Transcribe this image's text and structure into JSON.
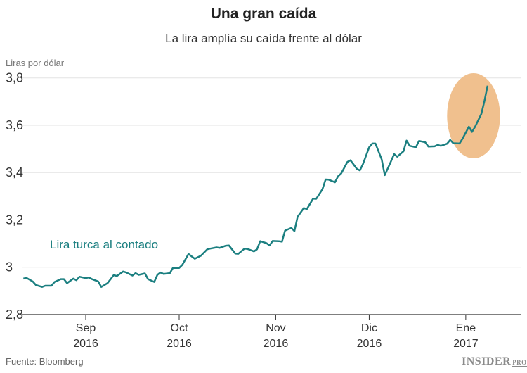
{
  "header": {
    "title": "Una gran caída",
    "subtitle": "La lira amplía su caída frente al dólar"
  },
  "footer": {
    "source": "Fuente: Bloomberg",
    "logo_main": "INSIDER",
    "logo_suffix": "PRO"
  },
  "colors": {
    "line": "#1b7f80",
    "highlight": "#f0c08e",
    "grid": "#e3e3e3",
    "axis": "#333333"
  },
  "chart_data": {
    "type": "line",
    "title": "Una gran caída",
    "subtitle": "La lira amplía su caída frente al dólar",
    "ylabel": "Liras por dólar",
    "ylim": [
      2.8,
      3.8
    ],
    "yticks": [
      {
        "value": 2.8,
        "label": "2,8"
      },
      {
        "value": 3.0,
        "label": "3"
      },
      {
        "value": 3.2,
        "label": "3,2"
      },
      {
        "value": 3.4,
        "label": "3,4"
      },
      {
        "value": 3.6,
        "label": "3,6"
      },
      {
        "value": 3.8,
        "label": "3,8"
      }
    ],
    "xticks": [
      {
        "date": "2016-09-01",
        "month": "Sep",
        "year": "2016"
      },
      {
        "date": "2016-10-01",
        "month": "Oct",
        "year": "2016"
      },
      {
        "date": "2016-11-01",
        "month": "Nov",
        "year": "2016"
      },
      {
        "date": "2016-12-01",
        "month": "Dic",
        "year": "2016"
      },
      {
        "date": "2017-01-01",
        "month": "Ene",
        "year": "2017"
      }
    ],
    "grid": true,
    "highlight": {
      "shape": "ellipse",
      "from": "2016-12-26",
      "to": "2017-01-12",
      "ymin": 3.46,
      "ymax": 3.82
    },
    "series": [
      {
        "name": "Lira turca al contado",
        "points": [
          [
            "2016-08-12",
            2.952
          ],
          [
            "2016-08-13",
            2.955
          ],
          [
            "2016-08-15",
            2.94
          ],
          [
            "2016-08-16",
            2.925
          ],
          [
            "2016-08-18",
            2.917
          ],
          [
            "2016-08-19",
            2.922
          ],
          [
            "2016-08-21",
            2.922
          ],
          [
            "2016-08-22",
            2.938
          ],
          [
            "2016-08-24",
            2.95
          ],
          [
            "2016-08-25",
            2.95
          ],
          [
            "2016-08-26",
            2.933
          ],
          [
            "2016-08-28",
            2.952
          ],
          [
            "2016-08-29",
            2.945
          ],
          [
            "2016-08-30",
            2.96
          ],
          [
            "2016-09-01",
            2.954
          ],
          [
            "2016-09-02",
            2.957
          ],
          [
            "2016-09-03",
            2.95
          ],
          [
            "2016-09-05",
            2.94
          ],
          [
            "2016-09-06",
            2.917
          ],
          [
            "2016-09-08",
            2.933
          ],
          [
            "2016-09-09",
            2.95
          ],
          [
            "2016-09-10",
            2.967
          ],
          [
            "2016-09-11",
            2.963
          ],
          [
            "2016-09-13",
            2.982
          ],
          [
            "2016-09-14",
            2.978
          ],
          [
            "2016-09-16",
            2.965
          ],
          [
            "2016-09-17",
            2.975
          ],
          [
            "2016-09-18",
            2.968
          ],
          [
            "2016-09-20",
            2.974
          ],
          [
            "2016-09-21",
            2.95
          ],
          [
            "2016-09-23",
            2.938
          ],
          [
            "2016-09-24",
            2.968
          ],
          [
            "2016-09-25",
            2.978
          ],
          [
            "2016-09-26",
            2.972
          ],
          [
            "2016-09-28",
            2.975
          ],
          [
            "2016-09-29",
            2.997
          ],
          [
            "2016-10-01",
            2.997
          ],
          [
            "2016-10-02",
            3.01
          ],
          [
            "2016-10-04",
            3.056
          ],
          [
            "2016-10-05",
            3.046
          ],
          [
            "2016-10-06",
            3.036
          ],
          [
            "2016-10-08",
            3.049
          ],
          [
            "2016-10-10",
            3.076
          ],
          [
            "2016-10-11",
            3.079
          ],
          [
            "2016-10-13",
            3.084
          ],
          [
            "2016-10-14",
            3.082
          ],
          [
            "2016-10-16",
            3.091
          ],
          [
            "2016-10-17",
            3.092
          ],
          [
            "2016-10-19",
            3.058
          ],
          [
            "2016-10-20",
            3.057
          ],
          [
            "2016-10-22",
            3.079
          ],
          [
            "2016-10-23",
            3.077
          ],
          [
            "2016-10-25",
            3.067
          ],
          [
            "2016-10-26",
            3.076
          ],
          [
            "2016-10-27",
            3.11
          ],
          [
            "2016-10-29",
            3.102
          ],
          [
            "2016-10-30",
            3.092
          ],
          [
            "2016-10-31",
            3.111
          ],
          [
            "2016-11-02",
            3.11
          ],
          [
            "2016-11-03",
            3.108
          ],
          [
            "2016-11-04",
            3.155
          ],
          [
            "2016-11-06",
            3.166
          ],
          [
            "2016-11-07",
            3.153
          ],
          [
            "2016-11-08",
            3.213
          ],
          [
            "2016-11-10",
            3.25
          ],
          [
            "2016-11-11",
            3.246
          ],
          [
            "2016-11-13",
            3.29
          ],
          [
            "2016-11-14",
            3.289
          ],
          [
            "2016-11-16",
            3.33
          ],
          [
            "2016-11-17",
            3.371
          ],
          [
            "2016-11-18",
            3.37
          ],
          [
            "2016-11-20",
            3.359
          ],
          [
            "2016-11-21",
            3.384
          ],
          [
            "2016-11-22",
            3.396
          ],
          [
            "2016-11-24",
            3.445
          ],
          [
            "2016-11-25",
            3.452
          ],
          [
            "2016-11-27",
            3.416
          ],
          [
            "2016-11-28",
            3.409
          ],
          [
            "2016-11-29",
            3.436
          ],
          [
            "2016-12-01",
            3.507
          ],
          [
            "2016-12-02",
            3.523
          ],
          [
            "2016-12-03",
            3.523
          ],
          [
            "2016-12-05",
            3.456
          ],
          [
            "2016-12-06",
            3.389
          ],
          [
            "2016-12-08",
            3.448
          ],
          [
            "2016-12-09",
            3.478
          ],
          [
            "2016-12-10",
            3.467
          ],
          [
            "2016-12-12",
            3.49
          ],
          [
            "2016-12-13",
            3.535
          ],
          [
            "2016-12-14",
            3.513
          ],
          [
            "2016-12-16",
            3.507
          ],
          [
            "2016-12-17",
            3.534
          ],
          [
            "2016-12-19",
            3.528
          ],
          [
            "2016-12-20",
            3.51
          ],
          [
            "2016-12-22",
            3.511
          ],
          [
            "2016-12-23",
            3.517
          ],
          [
            "2016-12-24",
            3.513
          ],
          [
            "2016-12-26",
            3.522
          ],
          [
            "2016-12-27",
            3.538
          ],
          [
            "2016-12-28",
            3.524
          ],
          [
            "2016-12-30",
            3.523
          ],
          [
            "2016-12-31",
            3.544
          ],
          [
            "2017-01-02",
            3.594
          ],
          [
            "2017-01-03",
            3.572
          ],
          [
            "2017-01-04",
            3.594
          ],
          [
            "2017-01-06",
            3.648
          ],
          [
            "2017-01-07",
            3.703
          ],
          [
            "2017-01-08",
            3.767
          ]
        ]
      }
    ]
  }
}
